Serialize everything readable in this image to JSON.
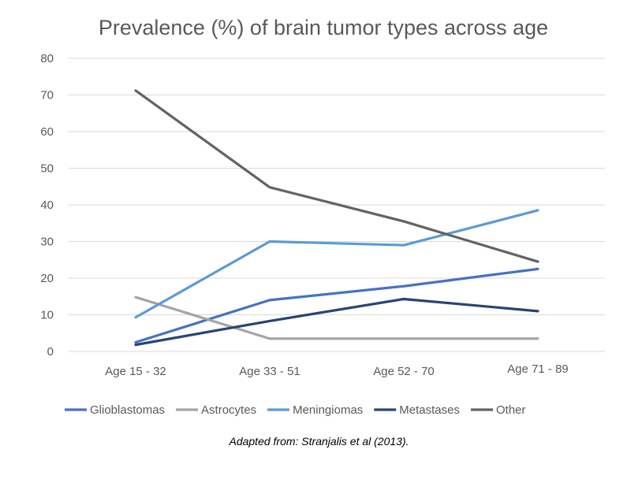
{
  "chart_data": {
    "type": "line",
    "title": "Prevalence (%) of brain tumor types across age",
    "xlabel": "",
    "ylabel": "",
    "categories": [
      "Age 15 - 32",
      "Age 33 - 51",
      "Age 52 - 70",
      "Age 71 - 89"
    ],
    "ylim": [
      0,
      80
    ],
    "yticks": [
      "0",
      "10",
      "20",
      "30",
      "40",
      "50",
      "60",
      "70",
      "80"
    ],
    "grid": true,
    "legend_position": "bottom",
    "series": [
      {
        "name": "Glioblastomas",
        "color": "#4472C4",
        "values": [
          2.5,
          14,
          17.8,
          22.5
        ]
      },
      {
        "name": "Astrocytes",
        "color": "#A5A5A5",
        "values": [
          14.8,
          3.5,
          3.5,
          3.5
        ]
      },
      {
        "name": "Meningiomas",
        "color": "#5B9BD5",
        "values": [
          9.3,
          30,
          29,
          38.5
        ]
      },
      {
        "name": "Metastases",
        "color": "#264478",
        "values": [
          1.8,
          8.3,
          14.3,
          11
        ]
      },
      {
        "name": "Other",
        "color": "#636363",
        "values": [
          71.2,
          44.8,
          35.5,
          24.5
        ]
      }
    ]
  },
  "caption": "Adapted from: Stranjalis et al (2013)."
}
